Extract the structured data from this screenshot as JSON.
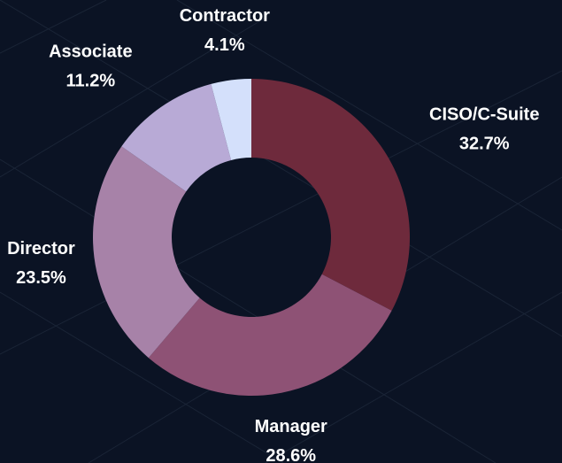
{
  "chart_data": {
    "type": "donut",
    "categories": [
      "CISO/C-Suite",
      "Manager",
      "Director",
      "Associate",
      "Contractor"
    ],
    "values": [
      32.7,
      28.6,
      23.5,
      11.2,
      4.1
    ],
    "value_labels": [
      "32.7%",
      "28.6%",
      "23.5%",
      "11.2%",
      "4.1%"
    ],
    "colors": [
      "#6e2a3c",
      "#8e5275",
      "#a782a8",
      "#b8aad6",
      "#d4e0fb"
    ]
  }
}
